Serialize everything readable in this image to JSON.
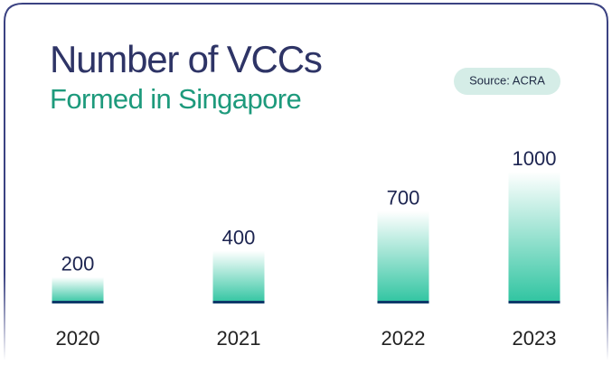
{
  "chart_data": {
    "type": "bar",
    "title": "Number of VCCs",
    "subtitle": "Formed in Singapore",
    "source": "Source: ACRA",
    "categories": [
      "2020",
      "2021",
      "2022",
      "2023"
    ],
    "values": [
      200,
      400,
      700,
      1000
    ],
    "color": "#2ec4a0",
    "ylim": [
      0,
      1000
    ]
  }
}
